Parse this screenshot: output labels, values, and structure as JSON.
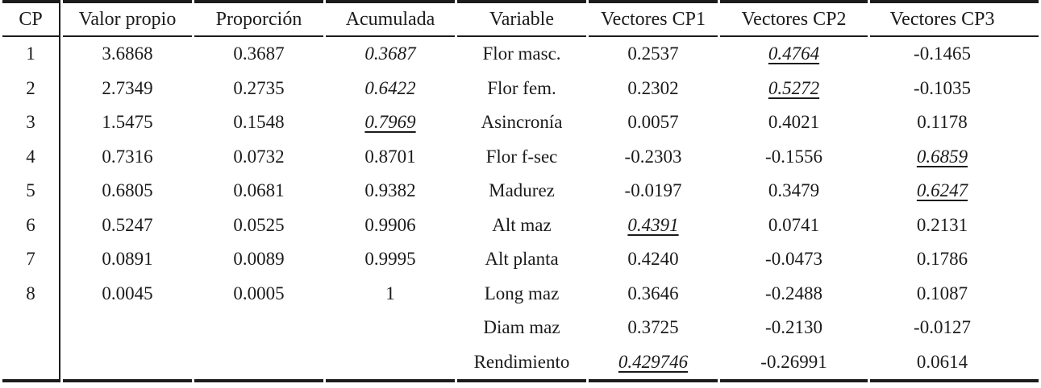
{
  "colors": {
    "text": "#1b1b1b",
    "border": "#1c1c1c",
    "background": "#ffffff"
  },
  "table": {
    "headers": [
      "CP",
      "Valor propio",
      "Proporción",
      "Acumulada",
      "Variable",
      "Vectores CP1",
      "Vectores CP2",
      "Vectores CP3"
    ],
    "rows": [
      {
        "cells": [
          "1",
          "3.6868",
          "0.3687",
          {
            "t": "0.3687",
            "em": true
          },
          "Flor masc.",
          "0.2537",
          {
            "t": "0.4764",
            "em": true,
            "u": true
          },
          "-0.1465"
        ]
      },
      {
        "cells": [
          "2",
          "2.7349",
          "0.2735",
          {
            "t": "0.6422",
            "em": true
          },
          "Flor fem.",
          "0.2302",
          {
            "t": "0.5272",
            "em": true,
            "u": true
          },
          "-0.1035"
        ]
      },
      {
        "cells": [
          "3",
          "1.5475",
          "0.1548",
          {
            "t": "0.7969",
            "em": true,
            "u": true
          },
          "Asincronía",
          "0.0057",
          "0.4021",
          "0.1178"
        ]
      },
      {
        "cells": [
          "4",
          "0.7316",
          "0.0732",
          "0.8701",
          "Flor f-sec",
          "-0.2303",
          "-0.1556",
          {
            "t": "0.6859",
            "em": true,
            "u": true
          }
        ]
      },
      {
        "cells": [
          "5",
          "0.6805",
          "0.0681",
          "0.9382",
          "Madurez",
          "-0.0197",
          "0.3479",
          {
            "t": "0.6247",
            "em": true,
            "u": true
          }
        ]
      },
      {
        "cells": [
          "6",
          "0.5247",
          "0.0525",
          "0.9906",
          "Alt maz",
          {
            "t": "0.4391",
            "em": true,
            "u": true
          },
          "0.0741",
          "0.2131"
        ]
      },
      {
        "cells": [
          "7",
          "0.0891",
          "0.0089",
          "0.9995",
          "Alt planta",
          "0.4240",
          "-0.0473",
          "0.1786"
        ]
      },
      {
        "cells": [
          "8",
          "0.0045",
          "0.0005",
          "1",
          "Long maz",
          "0.3646",
          "-0.2488",
          "0.1087"
        ]
      },
      {
        "cells": [
          "",
          "",
          "",
          "",
          "Diam maz",
          "0.3725",
          "-0.2130",
          "-0.0127"
        ]
      },
      {
        "cells": [
          "",
          "",
          "",
          "",
          "Rendimiento",
          {
            "t": "0.429746",
            "em": true,
            "u": true
          },
          "-0.26991",
          "0.0614"
        ]
      }
    ]
  }
}
